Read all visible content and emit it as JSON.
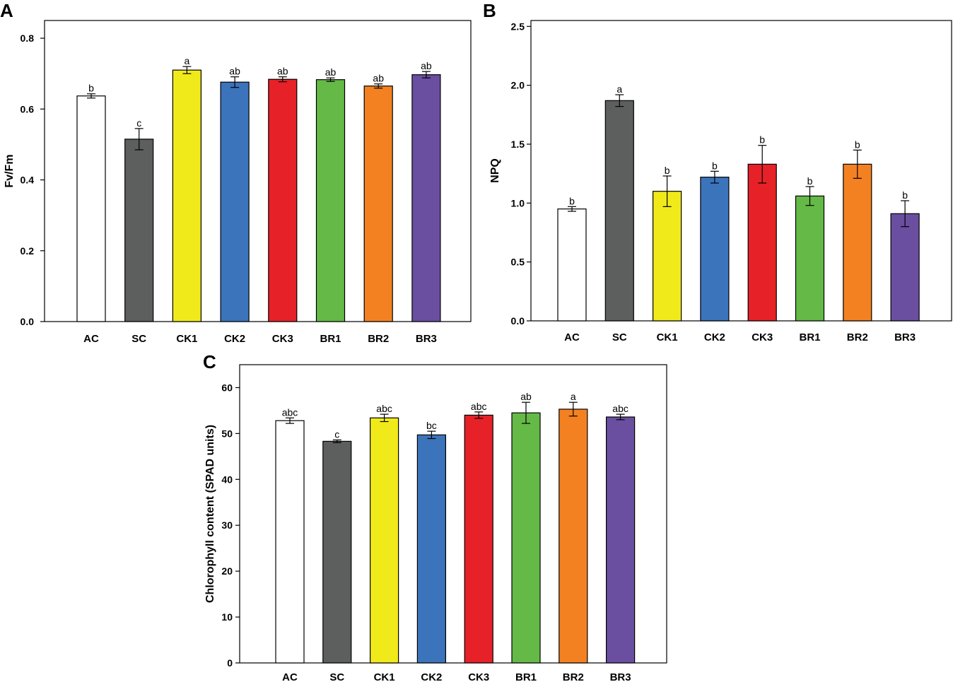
{
  "chart_data": [
    {
      "panel": "A",
      "type": "bar",
      "ylabel": "Fv/Fm",
      "ylim": [
        0,
        0.85
      ],
      "yticks": [
        0.0,
        0.2,
        0.4,
        0.6,
        0.8
      ],
      "ytick_labels": [
        "0.0",
        "0.2",
        "0.4",
        "0.6",
        "0.8"
      ],
      "categories": [
        "AC",
        "SC",
        "CK1",
        "CK2",
        "CK3",
        "BR1",
        "BR2",
        "BR3"
      ],
      "values": [
        0.637,
        0.515,
        0.71,
        0.676,
        0.684,
        0.683,
        0.665,
        0.697
      ],
      "errors": [
        0.006,
        0.03,
        0.01,
        0.015,
        0.007,
        0.005,
        0.006,
        0.009
      ],
      "letters": [
        "b",
        "c",
        "a",
        "ab",
        "ab",
        "ab",
        "ab",
        "ab"
      ],
      "colors": [
        "#ffffff",
        "#5d5e5e",
        "#f1ea1b",
        "#3b74bb",
        "#e72128",
        "#65b947",
        "#f48121",
        "#6a4fa0"
      ]
    },
    {
      "panel": "B",
      "type": "bar",
      "ylabel": "NPQ",
      "ylim": [
        0,
        2.55
      ],
      "yticks": [
        0.0,
        0.5,
        1.0,
        1.5,
        2.0,
        2.5
      ],
      "ytick_labels": [
        "0.0",
        "0.5",
        "1.0",
        "1.5",
        "2.0",
        "2.5"
      ],
      "categories": [
        "AC",
        "SC",
        "CK1",
        "CK2",
        "CK3",
        "BR1",
        "BR2",
        "BR3"
      ],
      "values": [
        0.95,
        1.87,
        1.1,
        1.22,
        1.33,
        1.06,
        1.33,
        0.91
      ],
      "errors": [
        0.02,
        0.05,
        0.13,
        0.05,
        0.16,
        0.08,
        0.12,
        0.11
      ],
      "letters": [
        "b",
        "a",
        "b",
        "b",
        "b",
        "b",
        "b",
        "b"
      ],
      "colors": [
        "#ffffff",
        "#5d5e5e",
        "#f1ea1b",
        "#3b74bb",
        "#e72128",
        "#65b947",
        "#f48121",
        "#6a4fa0"
      ]
    },
    {
      "panel": "C",
      "type": "bar",
      "ylabel": "Chlorophyll content (SPAD units)",
      "ylim": [
        0,
        65
      ],
      "yticks": [
        0,
        10,
        20,
        30,
        40,
        50,
        60
      ],
      "ytick_labels": [
        "0",
        "10",
        "20",
        "30",
        "40",
        "50",
        "60"
      ],
      "categories": [
        "AC",
        "SC",
        "CK1",
        "CK2",
        "CK3",
        "BR1",
        "BR2",
        "BR3"
      ],
      "values": [
        52.8,
        48.3,
        53.4,
        49.7,
        54.0,
        54.5,
        55.3,
        53.6
      ],
      "errors": [
        0.6,
        0.3,
        0.8,
        0.8,
        0.7,
        2.3,
        1.5,
        0.6
      ],
      "letters": [
        "abc",
        "c",
        "abc",
        "bc",
        "abc",
        "ab",
        "a",
        "abc"
      ],
      "colors": [
        "#ffffff",
        "#5d5e5e",
        "#f1ea1b",
        "#3b74bb",
        "#e72128",
        "#65b947",
        "#f48121",
        "#6a4fa0"
      ]
    }
  ]
}
